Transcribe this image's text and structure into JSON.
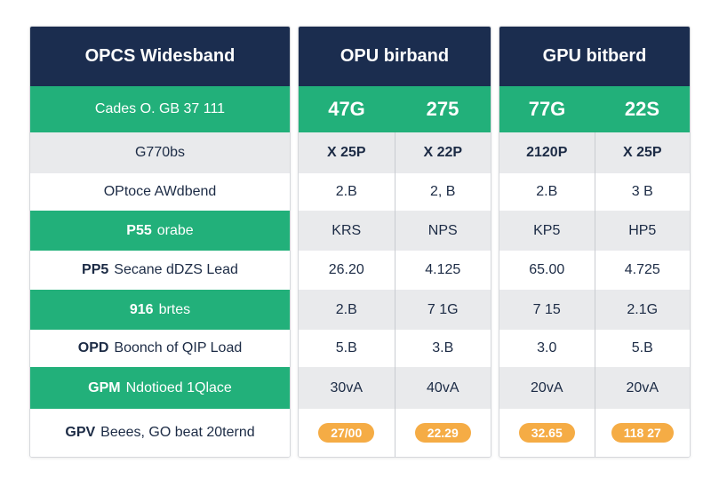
{
  "colors": {
    "header": "#1b2d4f",
    "accent_green": "#22b07a",
    "row_gray": "#e9eaec",
    "pill_orange": "#f5ac45"
  },
  "left_panel": {
    "title": "OPCS Widesband",
    "rows": [
      {
        "bold": "",
        "text": "Cades O. GB 37 111"
      },
      {
        "bold": "",
        "text": "G770bs"
      },
      {
        "bold": "",
        "text": "OPtoce AWdbend"
      },
      {
        "bold": "P55",
        "text": "orabe"
      },
      {
        "bold": "PP5",
        "text": "Secane dDZS Lead"
      },
      {
        "bold": "916",
        "text": "brtes"
      },
      {
        "bold": "OPD",
        "text": "Boonch of QIP Load"
      },
      {
        "bold": "GPM",
        "text": "Ndotioed 1Qlace"
      },
      {
        "bold": "GPV",
        "text": "Beees, GO beat 20ternd"
      }
    ]
  },
  "panels": [
    {
      "title": "OPU birband",
      "top": [
        "47G",
        "275"
      ],
      "rows": [
        [
          "X 25P",
          "X 22P"
        ],
        [
          "2.B",
          "2, B"
        ],
        [
          "KRS",
          "NPS"
        ],
        [
          "26.20",
          "4.125"
        ],
        [
          "2.B",
          "7 1G"
        ],
        [
          "5.B",
          "3.B"
        ],
        [
          "30vA",
          "40vA"
        ]
      ],
      "pills": [
        "27/00",
        "22.29"
      ]
    },
    {
      "title": "GPU bitberd",
      "top": [
        "77G",
        "22S"
      ],
      "rows": [
        [
          "2120P",
          "X 25P"
        ],
        [
          "2.B",
          "3 B"
        ],
        [
          "KP5",
          "HP5"
        ],
        [
          "65.00",
          "4.725"
        ],
        [
          "7 15",
          "2.1G"
        ],
        [
          "3.0",
          "5.B"
        ],
        [
          "20vA",
          "20vA"
        ]
      ],
      "pills": [
        "32.65",
        "118 27"
      ]
    }
  ]
}
